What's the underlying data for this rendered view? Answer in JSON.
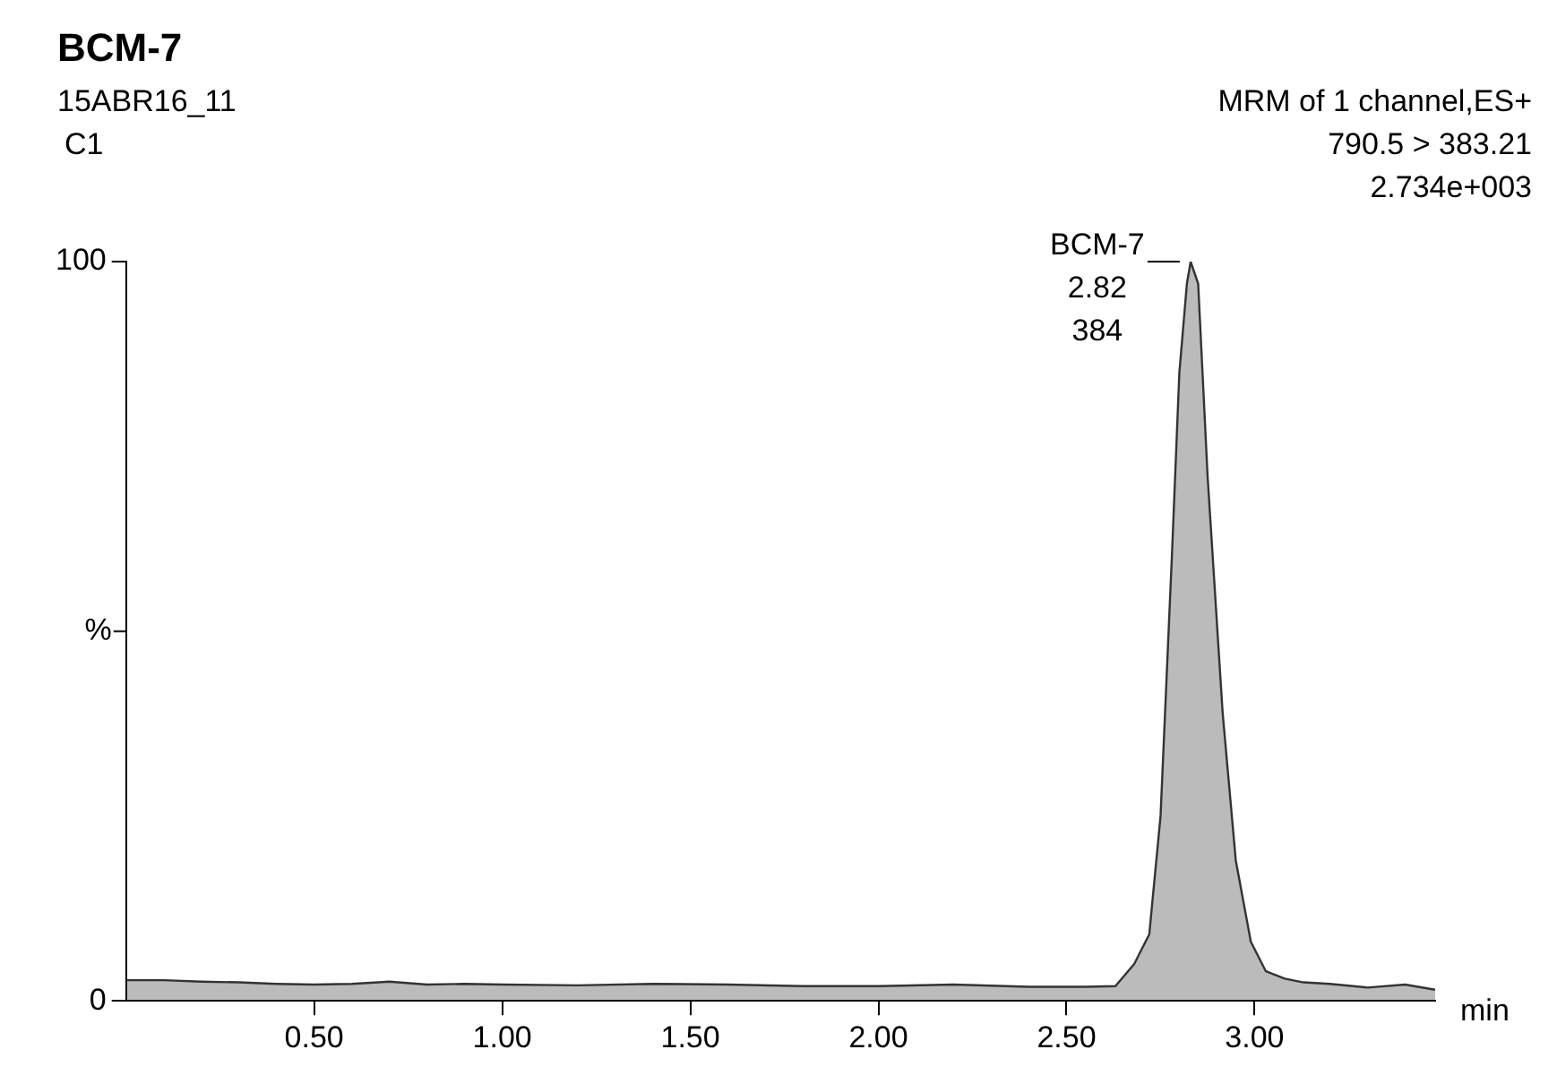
{
  "chart_data": {
    "type": "area",
    "title": "BCM-7",
    "xlabel": "min",
    "ylabel": "%",
    "annotations": [
      "15ABR16_11",
      "C1",
      "MRM of 1 channel,ES+",
      "790.5 > 383.21",
      "2.734e+003",
      {
        "text": "BCM-7\n2.82\n384",
        "x": 2.82,
        "y": 100
      }
    ],
    "series": [
      {
        "color": "#333333",
        "x": [
          0,
          0.1,
          0.2,
          0.3,
          0.4,
          0.5,
          0.6,
          0.7,
          0.8,
          0.9,
          1.0,
          1.2,
          1.4,
          1.6,
          1.8,
          2.0,
          2.2,
          2.4,
          2.55,
          2.63,
          2.68,
          2.72,
          2.75,
          2.78,
          2.8,
          2.82,
          2.83,
          2.85,
          2.875,
          2.915,
          2.95,
          2.99,
          3.03,
          3.08,
          3.13,
          3.2,
          3.3,
          3.4,
          3.48
        ],
        "values": [
          2.8,
          2.8,
          2.6,
          2.5,
          2.3,
          2.2,
          2.3,
          2.6,
          2.2,
          2.3,
          2.2,
          2.1,
          2.3,
          2.2,
          2.0,
          2.0,
          2.2,
          1.9,
          1.9,
          2.0,
          5,
          9,
          25,
          60,
          85,
          97,
          100,
          97,
          71,
          39,
          19,
          8,
          4,
          3,
          2.5,
          2.3,
          1.8,
          2.2,
          1.5
        ]
      }
    ],
    "xlim": [
      0,
      3.48
    ],
    "xticks": [
      {
        "value": 0.5,
        "label": "0.50"
      },
      {
        "value": 1,
        "label": "1.00"
      },
      {
        "value": 1.5,
        "label": "1.50"
      },
      {
        "value": 2,
        "label": "2.00"
      },
      {
        "value": 2.5,
        "label": "2.50"
      },
      {
        "value": 3,
        "label": "3.00"
      }
    ],
    "ylim": [
      0,
      100
    ],
    "yticks": [
      0,
      100
    ],
    "grid": false,
    "legend": false,
    "marker": "none",
    "line_style": "solid"
  }
}
